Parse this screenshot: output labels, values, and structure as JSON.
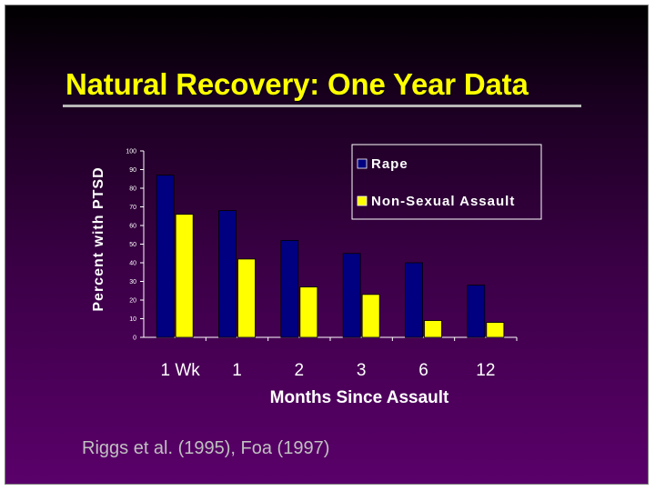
{
  "slide": {
    "title": "Natural Recovery:  One Year Data",
    "citation": "Riggs et al. (1995), Foa (1997)"
  },
  "colors": {
    "rape": "#000080",
    "nonsexual": "#ffff00",
    "title": "#ffff00",
    "background": "#4a005a"
  },
  "chart_data": {
    "type": "bar",
    "title": "",
    "xlabel": "Months Since Assault",
    "ylabel": "Percent with PTSD",
    "categories": [
      "1 Wk",
      "1",
      "2",
      "3",
      "6",
      "12"
    ],
    "series": [
      {
        "name": "Rape",
        "values": [
          87,
          68,
          52,
          45,
          40,
          28
        ]
      },
      {
        "name": "Non-Sexual Assault",
        "values": [
          66,
          42,
          27,
          23,
          9,
          8
        ]
      }
    ],
    "ylim": [
      0,
      100
    ],
    "yticks": [
      "0",
      "10",
      "20",
      "30",
      "40",
      "50",
      "60",
      "70",
      "80",
      "90",
      "100"
    ],
    "grid": false,
    "legend_position": "top-right"
  }
}
